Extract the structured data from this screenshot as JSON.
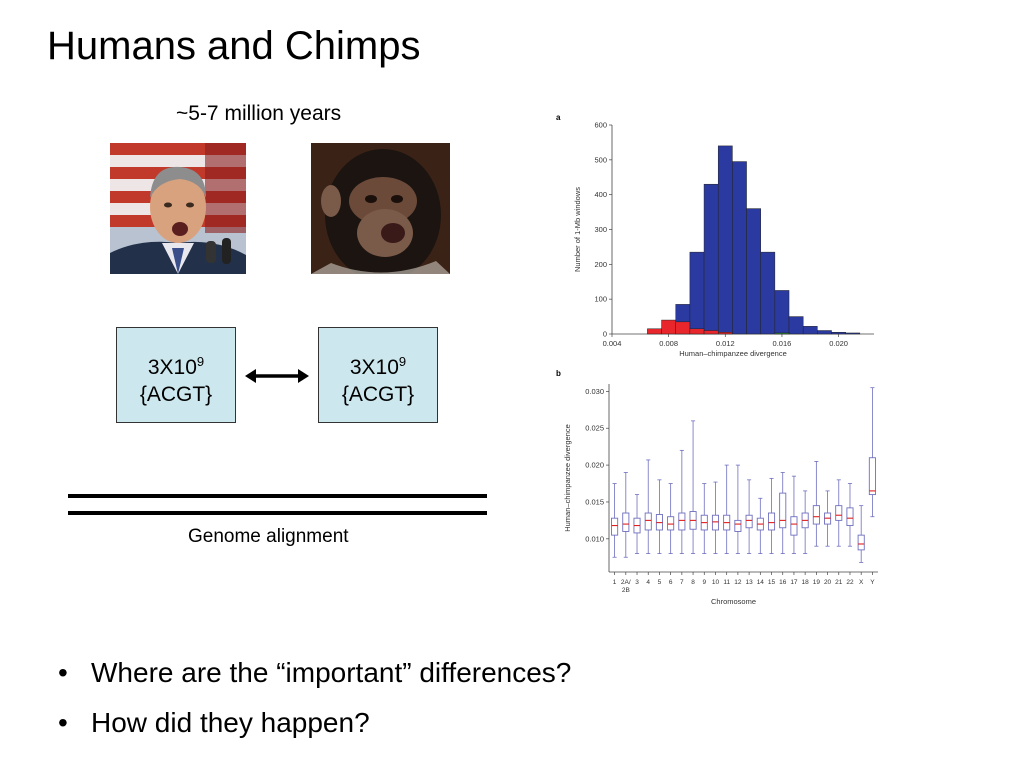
{
  "slide": {
    "title": "Humans and Chimps",
    "divergence_time": "~5-7 million years",
    "genome_size_base": "3X10",
    "genome_size_exp": "9",
    "genome_letters": "{ACGT}",
    "alignment_caption": "Genome alignment",
    "bullets": [
      "Where are the “important” differences?",
      "How did they happen?"
    ]
  },
  "colors": {
    "box_fill": "#cce8ee",
    "histogram_blue": "#2b3aa0",
    "histogram_red": "#e8262b",
    "histogram_green": "#2e9b3a",
    "box_edge": "#6f6fbf",
    "median": "#e02020"
  },
  "icons": {
    "arrow": "double-headed-arrow",
    "photo_left": "human-photo",
    "photo_right": "chimp-photo"
  },
  "chart_data": [
    {
      "type": "bar",
      "panel_label": "a",
      "xlabel": "Human–chimpanzee divergence",
      "ylabel": "Number of 1-Mb windows",
      "xlim": [
        0.004,
        0.0225
      ],
      "ylim": [
        0,
        600
      ],
      "x_ticks": [
        "0.004",
        "0.008",
        "0.012",
        "0.016",
        "0.020"
      ],
      "y_ticks": [
        "0",
        "100",
        "200",
        "300",
        "400",
        "500",
        "600"
      ],
      "bin_width": 0.001,
      "series": [
        {
          "color": "blue",
          "bin_starts": [
            0.0085,
            0.0095,
            0.0105,
            0.0115,
            0.0125,
            0.0135,
            0.0145,
            0.0155,
            0.0165,
            0.0175,
            0.0185,
            0.0195,
            0.0205
          ],
          "values": [
            85,
            235,
            430,
            540,
            495,
            360,
            235,
            125,
            50,
            22,
            10,
            5,
            3
          ]
        },
        {
          "color": "red",
          "bin_starts": [
            0.0065,
            0.0075,
            0.0085,
            0.0095,
            0.0105,
            0.0115
          ],
          "values": [
            15,
            40,
            35,
            15,
            10,
            5
          ]
        },
        {
          "color": "green",
          "bin_starts": [
            0.0155
          ],
          "values": [
            3
          ]
        }
      ]
    },
    {
      "type": "box",
      "panel_label": "b",
      "xlabel": "Chromosome",
      "ylabel": "Human–chimpanzee divergence",
      "ylim": [
        0.0055,
        0.031
      ],
      "y_ticks": [
        "0.010",
        "0.015",
        "0.020",
        "0.025",
        "0.030"
      ],
      "categories": [
        "1",
        "2A/\n2B",
        "3",
        "4",
        "5",
        "6",
        "7",
        "8",
        "9",
        "10",
        "11",
        "12",
        "13",
        "14",
        "15",
        "16",
        "17",
        "18",
        "19",
        "20",
        "21",
        "22",
        "X",
        "Y"
      ],
      "boxes": [
        {
          "min": 0.0075,
          "q1": 0.0105,
          "median": 0.0118,
          "q3": 0.0128,
          "max": 0.0175
        },
        {
          "min": 0.0075,
          "q1": 0.011,
          "median": 0.012,
          "q3": 0.0135,
          "max": 0.019
        },
        {
          "min": 0.008,
          "q1": 0.0108,
          "median": 0.0118,
          "q3": 0.0128,
          "max": 0.016
        },
        {
          "min": 0.008,
          "q1": 0.0112,
          "median": 0.0125,
          "q3": 0.0135,
          "max": 0.0207
        },
        {
          "min": 0.008,
          "q1": 0.0112,
          "median": 0.0122,
          "q3": 0.0133,
          "max": 0.018
        },
        {
          "min": 0.008,
          "q1": 0.0112,
          "median": 0.012,
          "q3": 0.013,
          "max": 0.0175
        },
        {
          "min": 0.008,
          "q1": 0.0112,
          "median": 0.0125,
          "q3": 0.0135,
          "max": 0.022
        },
        {
          "min": 0.008,
          "q1": 0.0113,
          "median": 0.0125,
          "q3": 0.0137,
          "max": 0.026
        },
        {
          "min": 0.008,
          "q1": 0.0112,
          "median": 0.0122,
          "q3": 0.0132,
          "max": 0.0175
        },
        {
          "min": 0.008,
          "q1": 0.0112,
          "median": 0.0123,
          "q3": 0.0132,
          "max": 0.0177
        },
        {
          "min": 0.008,
          "q1": 0.0112,
          "median": 0.0122,
          "q3": 0.0132,
          "max": 0.02
        },
        {
          "min": 0.008,
          "q1": 0.011,
          "median": 0.012,
          "q3": 0.0125,
          "max": 0.02
        },
        {
          "min": 0.008,
          "q1": 0.0115,
          "median": 0.0125,
          "q3": 0.0132,
          "max": 0.018
        },
        {
          "min": 0.008,
          "q1": 0.0112,
          "median": 0.012,
          "q3": 0.0128,
          "max": 0.0155
        },
        {
          "min": 0.008,
          "q1": 0.0112,
          "median": 0.0122,
          "q3": 0.0135,
          "max": 0.0182
        },
        {
          "min": 0.008,
          "q1": 0.0115,
          "median": 0.0125,
          "q3": 0.0162,
          "max": 0.019
        },
        {
          "min": 0.008,
          "q1": 0.0105,
          "median": 0.012,
          "q3": 0.013,
          "max": 0.0185
        },
        {
          "min": 0.008,
          "q1": 0.0115,
          "median": 0.0125,
          "q3": 0.0135,
          "max": 0.0165
        },
        {
          "min": 0.009,
          "q1": 0.012,
          "median": 0.013,
          "q3": 0.0145,
          "max": 0.0205
        },
        {
          "min": 0.009,
          "q1": 0.012,
          "median": 0.0128,
          "q3": 0.0135,
          "max": 0.0165
        },
        {
          "min": 0.009,
          "q1": 0.0125,
          "median": 0.0132,
          "q3": 0.0145,
          "max": 0.018
        },
        {
          "min": 0.009,
          "q1": 0.0118,
          "median": 0.0128,
          "q3": 0.0142,
          "max": 0.0175
        },
        {
          "min": 0.0068,
          "q1": 0.0085,
          "median": 0.0093,
          "q3": 0.0105,
          "max": 0.0145
        },
        {
          "min": 0.013,
          "q1": 0.016,
          "median": 0.0165,
          "q3": 0.021,
          "max": 0.0305
        }
      ]
    }
  ]
}
